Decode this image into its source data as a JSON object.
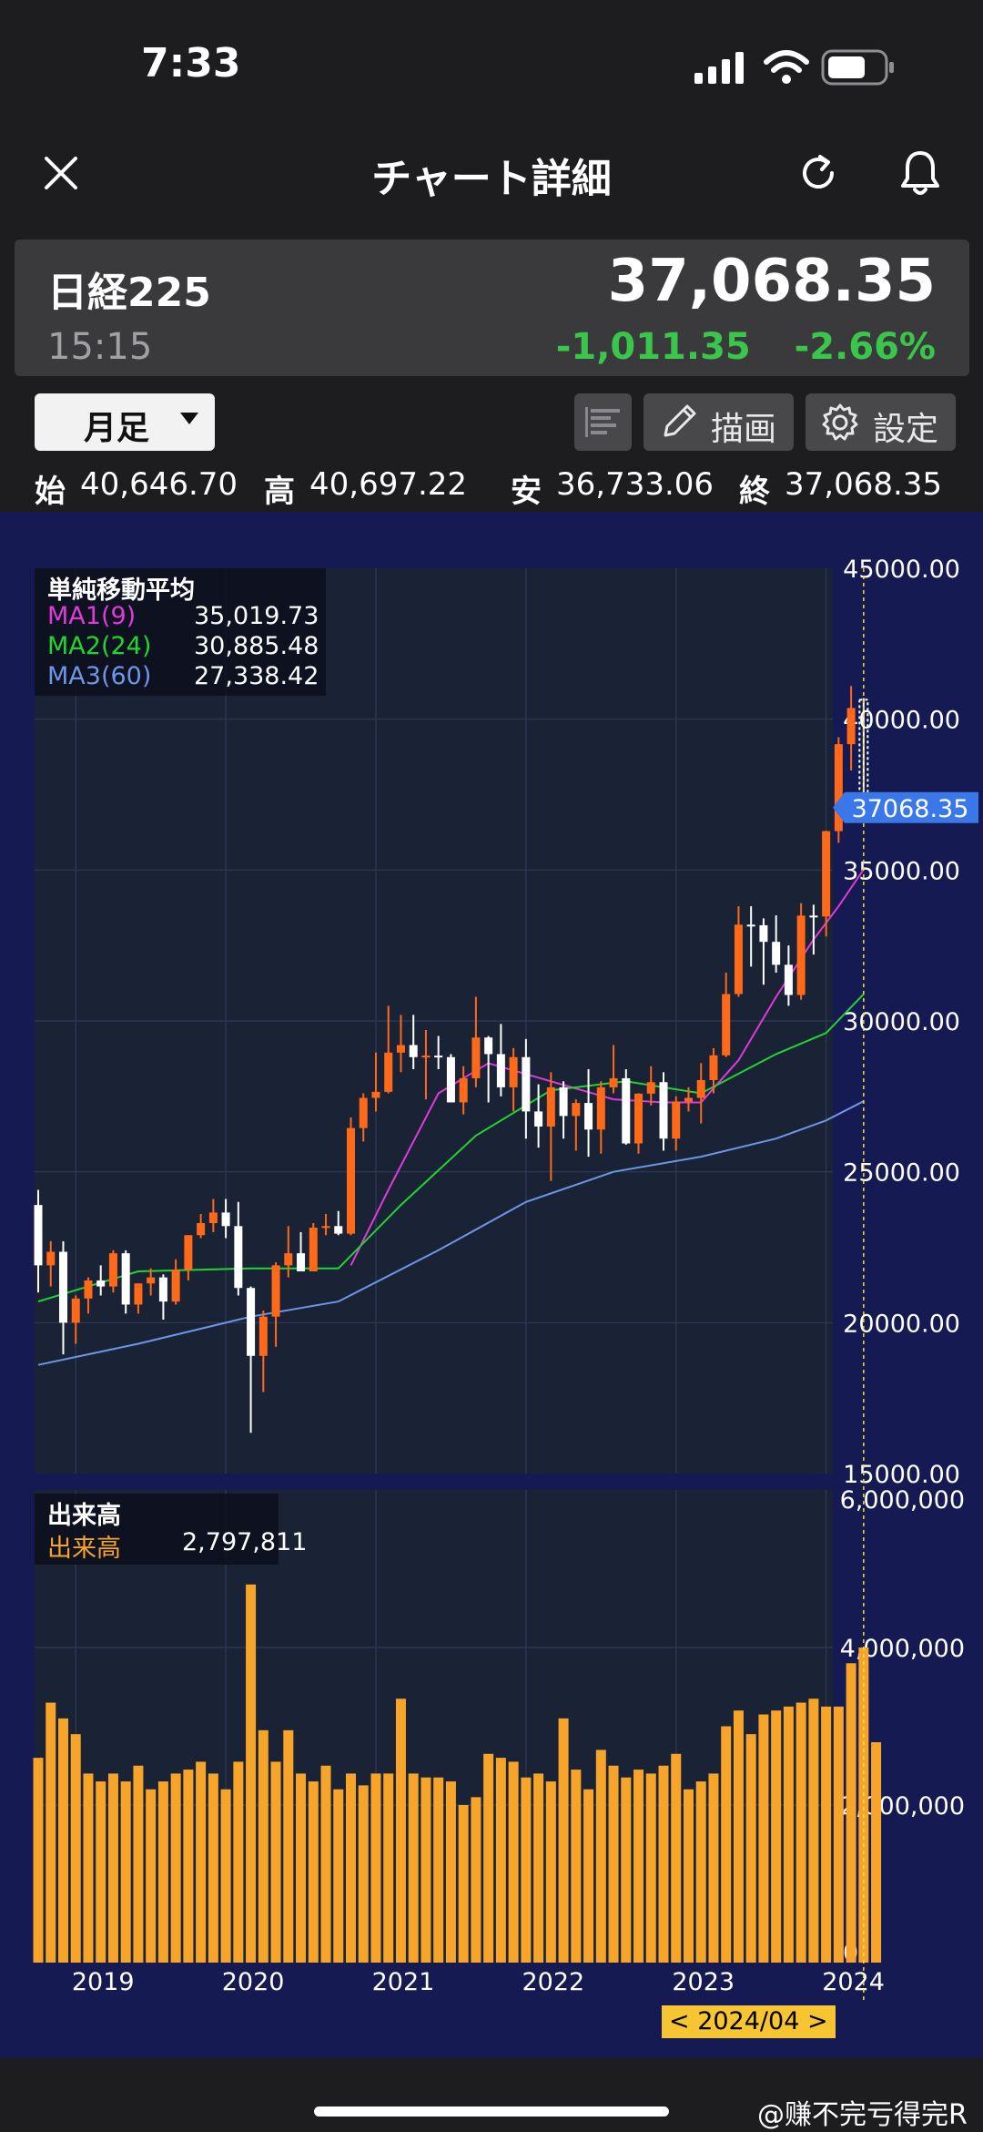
{
  "status_bar": {
    "time": "7:33"
  },
  "header": {
    "title": "チャート詳細"
  },
  "quote": {
    "name": "日経225",
    "time": "15:15",
    "price": "37,068.35",
    "change": "-1,011.35",
    "change_pct": "-2.66%",
    "change_color": "#39c64b"
  },
  "toolbar": {
    "period": "月足",
    "draw_label": "描画",
    "settings_label": "設定"
  },
  "ohlc": {
    "open_label": "始",
    "open": "40,646.70",
    "high_label": "高",
    "high": "40,697.22",
    "low_label": "安",
    "low": "36,733.06",
    "close_label": "終",
    "close": "37,068.35"
  },
  "price_legend": {
    "title": "単純移動平均",
    "items": [
      {
        "label": "MA1(9)",
        "value": "35,019.73",
        "color": "#e03ad8"
      },
      {
        "label": "MA2(24)",
        "value": "30,885.48",
        "color": "#22d52e"
      },
      {
        "label": "MA3(60)",
        "value": "27,338.42",
        "color": "#6f96e6"
      }
    ]
  },
  "volume_legend": {
    "title": "出来高",
    "label": "出来高",
    "value": "2,797,811"
  },
  "price_axis": [
    "45000.00",
    "40000.00",
    "35000.00",
    "30000.00",
    "25000.00",
    "20000.00",
    "15000.00"
  ],
  "volume_axis": [
    "6,000,000",
    "4,000,000",
    "2,000,000",
    "0"
  ],
  "x_axis": [
    "2019",
    "2020",
    "2021",
    "2022",
    "2023",
    "2024"
  ],
  "last_price_badge": "37068.35",
  "crosshair_date": "< 2024/04 >",
  "watermark": "@赚不完亏得完R",
  "colors": {
    "up": "#ff6a1a",
    "down": "#ffffff",
    "volume": "#f7a42a",
    "chart_bg": "#1a2236",
    "frame_bg": "#151a52",
    "badge": "#3a78ea"
  },
  "chart_data": [
    {
      "type": "candlestick",
      "title": "単純移動平均",
      "x_range": [
        "2018-10",
        "2024-04"
      ],
      "ylim": [
        15000,
        45000
      ],
      "candles": [
        {
          "date": "2018-10",
          "open": 23900,
          "high": 24400,
          "low": 21000,
          "close": 21900
        },
        {
          "date": "2018-11",
          "open": 21900,
          "high": 22700,
          "low": 21200,
          "close": 22350
        },
        {
          "date": "2018-12",
          "open": 22350,
          "high": 22700,
          "low": 18950,
          "close": 20000
        },
        {
          "date": "2019-01",
          "open": 20000,
          "high": 20900,
          "low": 19300,
          "close": 20800
        },
        {
          "date": "2019-02",
          "open": 20800,
          "high": 21500,
          "low": 20300,
          "close": 21400
        },
        {
          "date": "2019-03",
          "open": 21400,
          "high": 21900,
          "low": 20900,
          "close": 21200
        },
        {
          "date": "2019-04",
          "open": 21200,
          "high": 22400,
          "low": 21000,
          "close": 22300
        },
        {
          "date": "2019-05",
          "open": 22300,
          "high": 22400,
          "low": 20300,
          "close": 20600
        },
        {
          "date": "2019-06",
          "open": 20600,
          "high": 21300,
          "low": 20300,
          "close": 21300
        },
        {
          "date": "2019-07",
          "open": 21300,
          "high": 21800,
          "low": 20900,
          "close": 21500
        },
        {
          "date": "2019-08",
          "open": 21500,
          "high": 21600,
          "low": 20100,
          "close": 20700
        },
        {
          "date": "2019-09",
          "open": 20700,
          "high": 22100,
          "low": 20600,
          "close": 21750
        },
        {
          "date": "2019-10",
          "open": 21750,
          "high": 22900,
          "low": 21400,
          "close": 22900
        },
        {
          "date": "2019-11",
          "open": 22900,
          "high": 23600,
          "low": 22800,
          "close": 23300
        },
        {
          "date": "2019-12",
          "open": 23300,
          "high": 24100,
          "low": 23000,
          "close": 23650
        },
        {
          "date": "2020-01",
          "open": 23650,
          "high": 24100,
          "low": 22800,
          "close": 23200
        },
        {
          "date": "2020-02",
          "open": 23200,
          "high": 24000,
          "low": 20900,
          "close": 21150
        },
        {
          "date": "2020-03",
          "open": 21150,
          "high": 21200,
          "low": 16350,
          "close": 18900
        },
        {
          "date": "2020-04",
          "open": 18900,
          "high": 20400,
          "low": 17700,
          "close": 20200
        },
        {
          "date": "2020-05",
          "open": 20200,
          "high": 22000,
          "low": 19200,
          "close": 21900
        },
        {
          "date": "2020-06",
          "open": 21900,
          "high": 23200,
          "low": 21500,
          "close": 22300
        },
        {
          "date": "2020-07",
          "open": 22300,
          "high": 23000,
          "low": 21700,
          "close": 21700
        },
        {
          "date": "2020-08",
          "open": 21700,
          "high": 23300,
          "low": 21700,
          "close": 23150
        },
        {
          "date": "2020-09",
          "open": 23150,
          "high": 23600,
          "low": 22900,
          "close": 23200
        },
        {
          "date": "2020-10",
          "open": 23200,
          "high": 23700,
          "low": 22900,
          "close": 22950
        },
        {
          "date": "2020-11",
          "open": 22950,
          "high": 26800,
          "low": 22900,
          "close": 26450
        },
        {
          "date": "2020-12",
          "open": 26450,
          "high": 27600,
          "low": 26000,
          "close": 27450
        },
        {
          "date": "2021-01",
          "open": 27450,
          "high": 28950,
          "low": 27000,
          "close": 27650
        },
        {
          "date": "2021-02",
          "open": 27650,
          "high": 30500,
          "low": 27600,
          "close": 28950
        },
        {
          "date": "2021-03",
          "open": 28950,
          "high": 30200,
          "low": 28300,
          "close": 29200
        },
        {
          "date": "2021-04",
          "open": 29200,
          "high": 30200,
          "low": 28400,
          "close": 28800
        },
        {
          "date": "2021-05",
          "open": 28800,
          "high": 29700,
          "low": 27400,
          "close": 28850
        },
        {
          "date": "2021-06",
          "open": 28850,
          "high": 29500,
          "low": 28400,
          "close": 28800
        },
        {
          "date": "2021-07",
          "open": 28800,
          "high": 28900,
          "low": 27300,
          "close": 27300
        },
        {
          "date": "2021-08",
          "open": 27300,
          "high": 28500,
          "low": 26900,
          "close": 28100
        },
        {
          "date": "2021-09",
          "open": 28100,
          "high": 30800,
          "low": 27800,
          "close": 29450
        },
        {
          "date": "2021-10",
          "open": 29450,
          "high": 29500,
          "low": 27300,
          "close": 28900
        },
        {
          "date": "2021-11",
          "open": 28900,
          "high": 29900,
          "low": 27500,
          "close": 27800
        },
        {
          "date": "2021-12",
          "open": 27800,
          "high": 29100,
          "low": 27000,
          "close": 28800
        },
        {
          "date": "2022-01",
          "open": 28800,
          "high": 29400,
          "low": 26100,
          "close": 27000
        },
        {
          "date": "2022-02",
          "open": 27000,
          "high": 27900,
          "low": 25800,
          "close": 26500
        },
        {
          "date": "2022-03",
          "open": 26500,
          "high": 28300,
          "low": 24700,
          "close": 27800
        },
        {
          "date": "2022-04",
          "open": 27800,
          "high": 28000,
          "low": 26100,
          "close": 26850
        },
        {
          "date": "2022-05",
          "open": 26850,
          "high": 27400,
          "low": 25700,
          "close": 27280
        },
        {
          "date": "2022-06",
          "open": 27280,
          "high": 28400,
          "low": 25500,
          "close": 26400
        },
        {
          "date": "2022-07",
          "open": 26400,
          "high": 28000,
          "low": 25600,
          "close": 27800
        },
        {
          "date": "2022-08",
          "open": 27800,
          "high": 29200,
          "low": 27600,
          "close": 28100
        },
        {
          "date": "2022-09",
          "open": 28100,
          "high": 28400,
          "low": 25900,
          "close": 25940
        },
        {
          "date": "2022-10",
          "open": 25940,
          "high": 27600,
          "low": 25600,
          "close": 27590
        },
        {
          "date": "2022-11",
          "open": 27590,
          "high": 28500,
          "low": 27200,
          "close": 27970
        },
        {
          "date": "2022-12",
          "open": 27970,
          "high": 28300,
          "low": 25700,
          "close": 26100
        },
        {
          "date": "2023-01",
          "open": 26100,
          "high": 27500,
          "low": 25700,
          "close": 27330
        },
        {
          "date": "2023-02",
          "open": 27330,
          "high": 27800,
          "low": 27000,
          "close": 27450
        },
        {
          "date": "2023-03",
          "open": 27450,
          "high": 28600,
          "low": 26600,
          "close": 28040
        },
        {
          "date": "2023-04",
          "open": 28040,
          "high": 29100,
          "low": 27600,
          "close": 28860
        },
        {
          "date": "2023-05",
          "open": 28860,
          "high": 31600,
          "low": 28800,
          "close": 30890
        },
        {
          "date": "2023-06",
          "open": 30890,
          "high": 33800,
          "low": 30800,
          "close": 33190
        },
        {
          "date": "2023-07",
          "open": 33190,
          "high": 33800,
          "low": 31800,
          "close": 33170
        },
        {
          "date": "2023-08",
          "open": 33170,
          "high": 33400,
          "low": 31200,
          "close": 32620
        },
        {
          "date": "2023-09",
          "open": 32620,
          "high": 33500,
          "low": 31600,
          "close": 31860
        },
        {
          "date": "2023-10",
          "open": 31860,
          "high": 32500,
          "low": 30500,
          "close": 30860
        },
        {
          "date": "2023-11",
          "open": 30860,
          "high": 33900,
          "low": 30700,
          "close": 33490
        },
        {
          "date": "2023-12",
          "open": 33490,
          "high": 33850,
          "low": 32200,
          "close": 33460
        },
        {
          "date": "2024-01",
          "open": 33460,
          "high": 36300,
          "low": 32800,
          "close": 36290
        },
        {
          "date": "2024-02",
          "open": 36290,
          "high": 39400,
          "low": 35900,
          "close": 39170
        },
        {
          "date": "2024-03",
          "open": 39170,
          "high": 41100,
          "low": 38300,
          "close": 40370
        },
        {
          "date": "2024-04",
          "open": 40646.7,
          "high": 40697.22,
          "low": 36733.06,
          "close": 37068.35
        }
      ],
      "series": [
        {
          "name": "MA1(9)",
          "last": 35019.73,
          "points": [
            [
              "2020-11",
              21900
            ],
            [
              "2021-02",
              24400
            ],
            [
              "2021-06",
              27600
            ],
            [
              "2021-10",
              28600
            ],
            [
              "2022-03",
              28000
            ],
            [
              "2022-08",
              27400
            ],
            [
              "2022-12",
              27300
            ],
            [
              "2023-03",
              27300
            ],
            [
              "2023-06",
              28700
            ],
            [
              "2023-09",
              30800
            ],
            [
              "2023-12",
              32700
            ],
            [
              "2024-02",
              33800
            ],
            [
              "2024-04",
              35019.73
            ]
          ]
        },
        {
          "name": "MA2(24)",
          "last": 30885.48,
          "points": [
            [
              "2018-10",
              20700
            ],
            [
              "2019-06",
              21700
            ],
            [
              "2020-03",
              21800
            ],
            [
              "2020-10",
              21800
            ],
            [
              "2021-03",
              23900
            ],
            [
              "2021-09",
              26200
            ],
            [
              "2022-03",
              27700
            ],
            [
              "2022-09",
              28000
            ],
            [
              "2023-03",
              27600
            ],
            [
              "2023-09",
              28900
            ],
            [
              "2024-01",
              29600
            ],
            [
              "2024-04",
              30885.48
            ]
          ]
        },
        {
          "name": "MA3(60)",
          "last": 27338.42,
          "points": [
            [
              "2018-10",
              18600
            ],
            [
              "2019-06",
              19300
            ],
            [
              "2020-03",
              20200
            ],
            [
              "2020-10",
              20700
            ],
            [
              "2021-06",
              22400
            ],
            [
              "2022-01",
              24000
            ],
            [
              "2022-08",
              25000
            ],
            [
              "2023-03",
              25500
            ],
            [
              "2023-09",
              26100
            ],
            [
              "2024-01",
              26700
            ],
            [
              "2024-04",
              27338.42
            ]
          ]
        }
      ]
    },
    {
      "type": "bar",
      "title": "出来高",
      "ylim": [
        0,
        6000000
      ],
      "series": [
        {
          "name": "出来高",
          "values": [
            2600000,
            3300000,
            3100000,
            2900000,
            2400000,
            2300000,
            2400000,
            2300000,
            2500000,
            2200000,
            2300000,
            2400000,
            2450000,
            2550000,
            2400000,
            2200000,
            2550000,
            4800000,
            2950000,
            2550000,
            2950000,
            2400000,
            2300000,
            2500000,
            2200000,
            2400000,
            2250000,
            2400000,
            2400000,
            3350000,
            2400000,
            2350000,
            2350000,
            2300000,
            2000000,
            2100000,
            2650000,
            2600000,
            2550000,
            2350000,
            2400000,
            2300000,
            3100000,
            2450000,
            2200000,
            2700000,
            2500000,
            2350000,
            2450000,
            2400000,
            2500000,
            2650000,
            2200000,
            2300000,
            2400000,
            3000000,
            3200000,
            2900000,
            3150000,
            3200000,
            3250000,
            3300000,
            3350000,
            3250000,
            3250000,
            3800000,
            4000000,
            2797811
          ]
        }
      ]
    }
  ]
}
